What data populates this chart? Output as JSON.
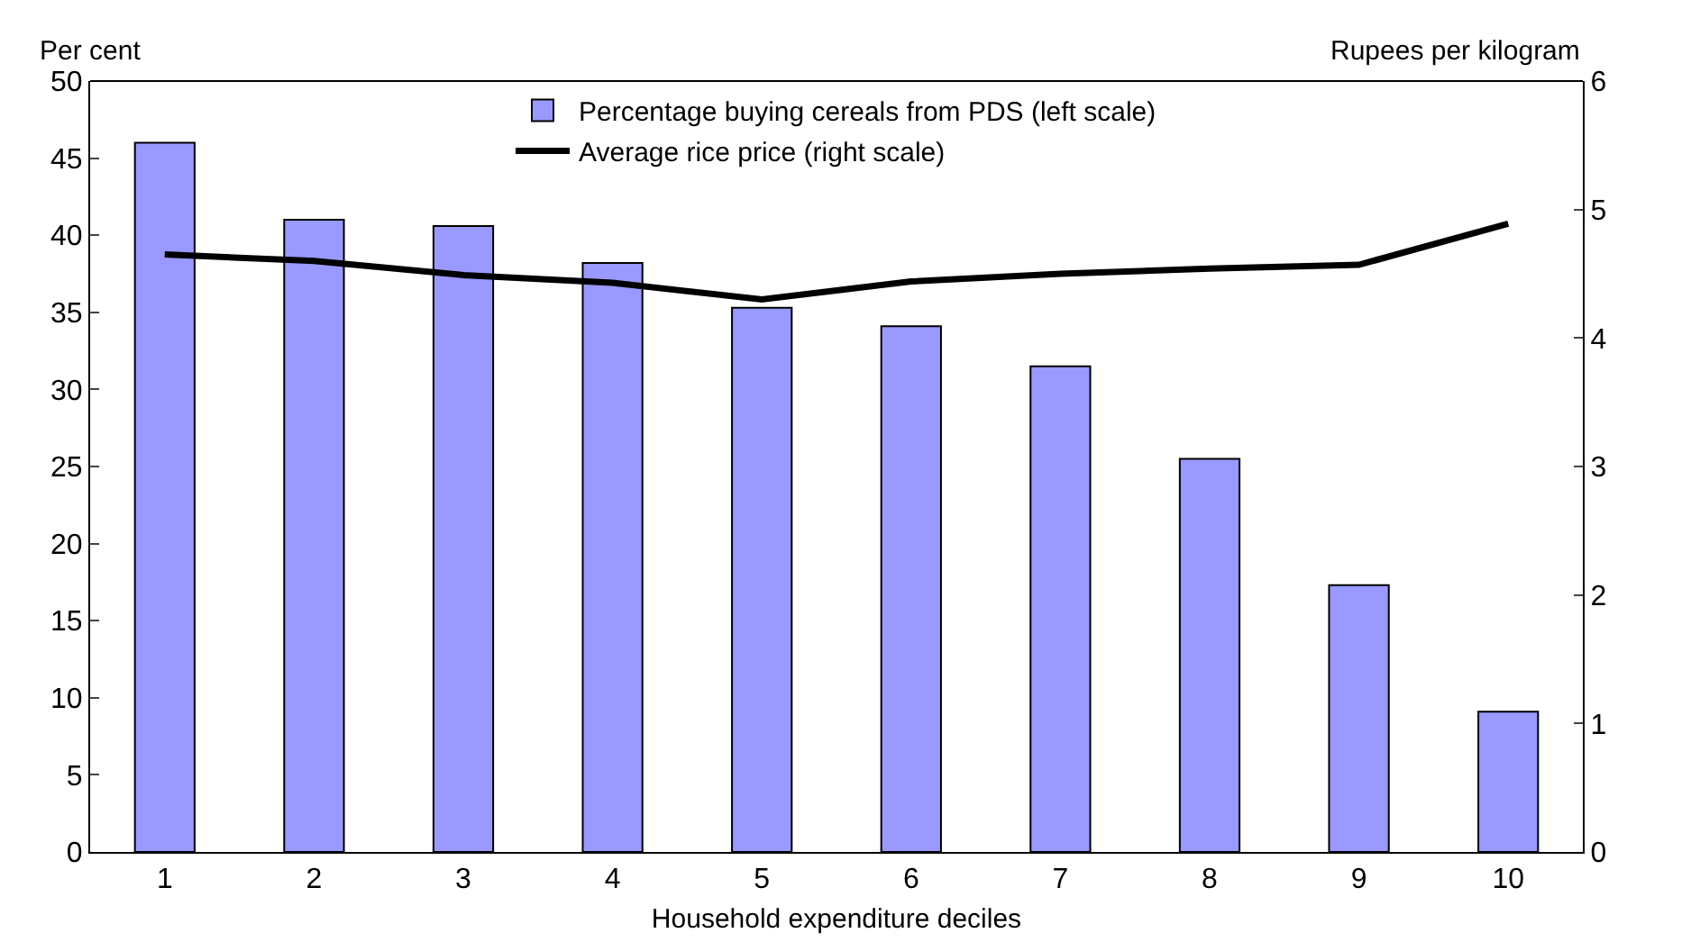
{
  "chart_data": {
    "type": "bar",
    "xlabel": "Household expenditure deciles",
    "ylabel": "Per cent",
    "y2label": "Rupees per kilogram",
    "categories": [
      "1",
      "2",
      "3",
      "4",
      "5",
      "6",
      "7",
      "8",
      "9",
      "10"
    ],
    "series": [
      {
        "name": "Percentage buying cereals from PDS (left scale)",
        "color": "#9999ff",
        "values": [
          46,
          41,
          40.6,
          38.2,
          35.3,
          34.1,
          31.5,
          25.5,
          17.3,
          9.1
        ]
      },
      {
        "name": "Average rice price (right scale)",
        "type": "line",
        "axis": "y2",
        "color": "#000000",
        "values": [
          4.65,
          4.6,
          4.49,
          4.43,
          4.3,
          4.44,
          4.5,
          4.54,
          4.57,
          4.89
        ]
      }
    ],
    "ylim": [
      0,
      50
    ],
    "yticks": [
      0,
      5,
      10,
      15,
      20,
      25,
      30,
      35,
      40,
      45,
      50
    ],
    "y2lim": [
      0,
      6
    ],
    "y2ticks": [
      0,
      1,
      2,
      3,
      4,
      5,
      6
    ],
    "legend": "top",
    "marker": "none",
    "line_style": "solid"
  }
}
